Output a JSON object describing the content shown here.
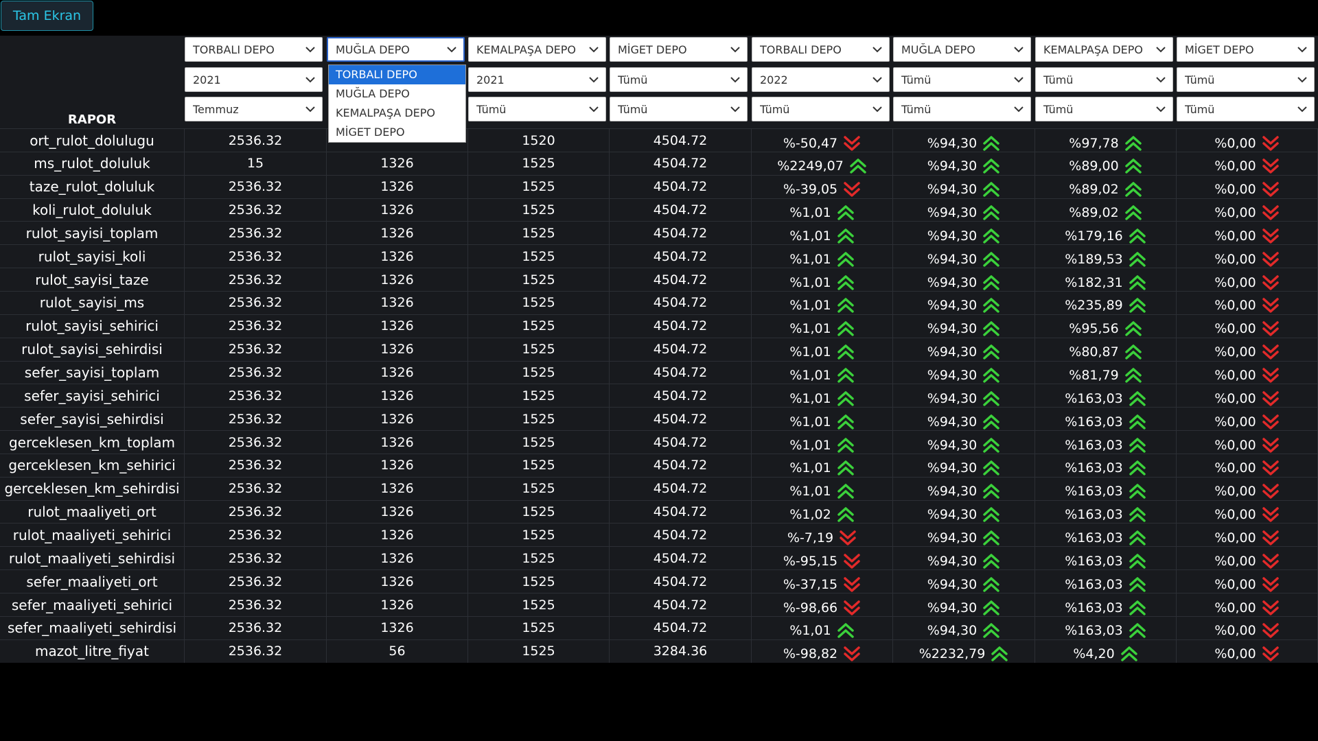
{
  "fullscreen_label": "Tam Ekran",
  "report_label": "RAPOR",
  "colors": {
    "up": "#3bd13b",
    "down": "#e32a2a",
    "accent": "#2bc7e8"
  },
  "filters": [
    {
      "depot": "TORBALI DEPO",
      "year": "2021",
      "month": "Temmuz"
    },
    {
      "depot": "MUĞLA DEPO",
      "year": "",
      "month": ""
    },
    {
      "depot": "KEMALPAŞA DEPO",
      "year": "2021",
      "month": "Tümü"
    },
    {
      "depot": "MİGET DEPO",
      "year": "Tümü",
      "month": "Tümü"
    },
    {
      "depot": "TORBALI DEPO",
      "year": "2022",
      "month": "Tümü"
    },
    {
      "depot": "MUĞLA DEPO",
      "year": "Tümü",
      "month": "Tümü"
    },
    {
      "depot": "KEMALPAŞA DEPO",
      "year": "Tümü",
      "month": "Tümü"
    },
    {
      "depot": "MİGET DEPO",
      "year": "Tümü",
      "month": "Tümü"
    }
  ],
  "dropdown_options": [
    "TORBALI DEPO",
    "MUĞLA DEPO",
    "KEMALPAŞA DEPO",
    "MİGET DEPO"
  ],
  "dropdown_selected": "TORBALI DEPO",
  "rows": [
    {
      "label": "ort_rulot_dolulugu",
      "v": [
        "2536.32",
        "",
        "1520",
        "4504.72"
      ],
      "p": [
        [
          "%-50,47",
          "down"
        ],
        [
          "%94,30",
          "up"
        ],
        [
          "%97,78",
          "up"
        ],
        [
          "%0,00",
          "down"
        ]
      ]
    },
    {
      "label": "ms_rulot_doluluk",
      "v": [
        "15",
        "1326",
        "1525",
        "4504.72"
      ],
      "p": [
        [
          "%2249,07",
          "up"
        ],
        [
          "%94,30",
          "up"
        ],
        [
          "%89,00",
          "up"
        ],
        [
          "%0,00",
          "down"
        ]
      ]
    },
    {
      "label": "taze_rulot_doluluk",
      "v": [
        "2536.32",
        "1326",
        "1525",
        "4504.72"
      ],
      "p": [
        [
          "%-39,05",
          "down"
        ],
        [
          "%94,30",
          "up"
        ],
        [
          "%89,02",
          "up"
        ],
        [
          "%0,00",
          "down"
        ]
      ]
    },
    {
      "label": "koli_rulot_doluluk",
      "v": [
        "2536.32",
        "1326",
        "1525",
        "4504.72"
      ],
      "p": [
        [
          "%1,01",
          "up"
        ],
        [
          "%94,30",
          "up"
        ],
        [
          "%89,02",
          "up"
        ],
        [
          "%0,00",
          "down"
        ]
      ]
    },
    {
      "label": "rulot_sayisi_toplam",
      "v": [
        "2536.32",
        "1326",
        "1525",
        "4504.72"
      ],
      "p": [
        [
          "%1,01",
          "up"
        ],
        [
          "%94,30",
          "up"
        ],
        [
          "%179,16",
          "up"
        ],
        [
          "%0,00",
          "down"
        ]
      ]
    },
    {
      "label": "rulot_sayisi_koli",
      "v": [
        "2536.32",
        "1326",
        "1525",
        "4504.72"
      ],
      "p": [
        [
          "%1,01",
          "up"
        ],
        [
          "%94,30",
          "up"
        ],
        [
          "%189,53",
          "up"
        ],
        [
          "%0,00",
          "down"
        ]
      ]
    },
    {
      "label": "rulot_sayisi_taze",
      "v": [
        "2536.32",
        "1326",
        "1525",
        "4504.72"
      ],
      "p": [
        [
          "%1,01",
          "up"
        ],
        [
          "%94,30",
          "up"
        ],
        [
          "%182,31",
          "up"
        ],
        [
          "%0,00",
          "down"
        ]
      ]
    },
    {
      "label": "rulot_sayisi_ms",
      "v": [
        "2536.32",
        "1326",
        "1525",
        "4504.72"
      ],
      "p": [
        [
          "%1,01",
          "up"
        ],
        [
          "%94,30",
          "up"
        ],
        [
          "%235,89",
          "up"
        ],
        [
          "%0,00",
          "down"
        ]
      ]
    },
    {
      "label": "rulot_sayisi_sehirici",
      "v": [
        "2536.32",
        "1326",
        "1525",
        "4504.72"
      ],
      "p": [
        [
          "%1,01",
          "up"
        ],
        [
          "%94,30",
          "up"
        ],
        [
          "%95,56",
          "up"
        ],
        [
          "%0,00",
          "down"
        ]
      ]
    },
    {
      "label": "rulot_sayisi_sehirdisi",
      "v": [
        "2536.32",
        "1326",
        "1525",
        "4504.72"
      ],
      "p": [
        [
          "%1,01",
          "up"
        ],
        [
          "%94,30",
          "up"
        ],
        [
          "%80,87",
          "up"
        ],
        [
          "%0,00",
          "down"
        ]
      ]
    },
    {
      "label": "sefer_sayisi_toplam",
      "v": [
        "2536.32",
        "1326",
        "1525",
        "4504.72"
      ],
      "p": [
        [
          "%1,01",
          "up"
        ],
        [
          "%94,30",
          "up"
        ],
        [
          "%81,79",
          "up"
        ],
        [
          "%0,00",
          "down"
        ]
      ]
    },
    {
      "label": "sefer_sayisi_sehirici",
      "v": [
        "2536.32",
        "1326",
        "1525",
        "4504.72"
      ],
      "p": [
        [
          "%1,01",
          "up"
        ],
        [
          "%94,30",
          "up"
        ],
        [
          "%163,03",
          "up"
        ],
        [
          "%0,00",
          "down"
        ]
      ]
    },
    {
      "label": "sefer_sayisi_sehirdisi",
      "v": [
        "2536.32",
        "1326",
        "1525",
        "4504.72"
      ],
      "p": [
        [
          "%1,01",
          "up"
        ],
        [
          "%94,30",
          "up"
        ],
        [
          "%163,03",
          "up"
        ],
        [
          "%0,00",
          "down"
        ]
      ]
    },
    {
      "label": "gerceklesen_km_toplam",
      "v": [
        "2536.32",
        "1326",
        "1525",
        "4504.72"
      ],
      "p": [
        [
          "%1,01",
          "up"
        ],
        [
          "%94,30",
          "up"
        ],
        [
          "%163,03",
          "up"
        ],
        [
          "%0,00",
          "down"
        ]
      ]
    },
    {
      "label": "gerceklesen_km_sehirici",
      "v": [
        "2536.32",
        "1326",
        "1525",
        "4504.72"
      ],
      "p": [
        [
          "%1,01",
          "up"
        ],
        [
          "%94,30",
          "up"
        ],
        [
          "%163,03",
          "up"
        ],
        [
          "%0,00",
          "down"
        ]
      ]
    },
    {
      "label": "gerceklesen_km_sehirdisi",
      "v": [
        "2536.32",
        "1326",
        "1525",
        "4504.72"
      ],
      "p": [
        [
          "%1,01",
          "up"
        ],
        [
          "%94,30",
          "up"
        ],
        [
          "%163,03",
          "up"
        ],
        [
          "%0,00",
          "down"
        ]
      ]
    },
    {
      "label": "rulot_maaliyeti_ort",
      "v": [
        "2536.32",
        "1326",
        "1525",
        "4504.72"
      ],
      "p": [
        [
          "%1,02",
          "up"
        ],
        [
          "%94,30",
          "up"
        ],
        [
          "%163,03",
          "up"
        ],
        [
          "%0,00",
          "down"
        ]
      ]
    },
    {
      "label": "rulot_maaliyeti_sehirici",
      "v": [
        "2536.32",
        "1326",
        "1525",
        "4504.72"
      ],
      "p": [
        [
          "%-7,19",
          "down"
        ],
        [
          "%94,30",
          "up"
        ],
        [
          "%163,03",
          "up"
        ],
        [
          "%0,00",
          "down"
        ]
      ]
    },
    {
      "label": "rulot_maaliyeti_sehirdisi",
      "v": [
        "2536.32",
        "1326",
        "1525",
        "4504.72"
      ],
      "p": [
        [
          "%-95,15",
          "down"
        ],
        [
          "%94,30",
          "up"
        ],
        [
          "%163,03",
          "up"
        ],
        [
          "%0,00",
          "down"
        ]
      ]
    },
    {
      "label": "sefer_maaliyeti_ort",
      "v": [
        "2536.32",
        "1326",
        "1525",
        "4504.72"
      ],
      "p": [
        [
          "%-37,15",
          "down"
        ],
        [
          "%94,30",
          "up"
        ],
        [
          "%163,03",
          "up"
        ],
        [
          "%0,00",
          "down"
        ]
      ]
    },
    {
      "label": "sefer_maaliyeti_sehirici",
      "v": [
        "2536.32",
        "1326",
        "1525",
        "4504.72"
      ],
      "p": [
        [
          "%-98,66",
          "down"
        ],
        [
          "%94,30",
          "up"
        ],
        [
          "%163,03",
          "up"
        ],
        [
          "%0,00",
          "down"
        ]
      ]
    },
    {
      "label": "sefer_maaliyeti_sehirdisi",
      "v": [
        "2536.32",
        "1326",
        "1525",
        "4504.72"
      ],
      "p": [
        [
          "%1,01",
          "up"
        ],
        [
          "%94,30",
          "up"
        ],
        [
          "%163,03",
          "up"
        ],
        [
          "%0,00",
          "down"
        ]
      ]
    },
    {
      "label": "mazot_litre_fiyat",
      "v": [
        "2536.32",
        "56",
        "1525",
        "3284.36"
      ],
      "p": [
        [
          "%-98,82",
          "down"
        ],
        [
          "%2232,79",
          "up"
        ],
        [
          "%4,20",
          "up"
        ],
        [
          "%0,00",
          "down"
        ]
      ]
    }
  ]
}
